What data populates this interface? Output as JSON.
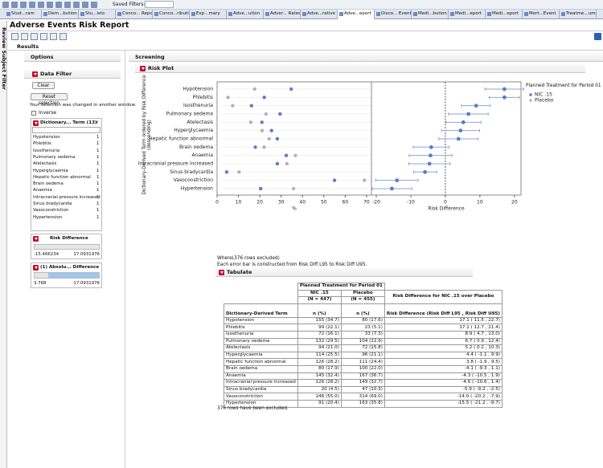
{
  "tabs": [
    "Stud...ram",
    "Dem...bution",
    "Stu...isto",
    "Conco... Report",
    "Conco...ribution",
    "Exp...mary",
    "Adve...ution",
    "Adver... Rates",
    "Adve...rative",
    "Adve...eport",
    "Disco... Event",
    "Medi...bution",
    "Medi...eport",
    "Medi...eport",
    "Mort...Event",
    "Treatme...ummary"
  ],
  "saved_filters": "Saved Filters:",
  "window_title": "Adverse Events Risk Report",
  "side_tab": "Review Subject Filter",
  "results": "Results",
  "options": "Options",
  "data_filter": {
    "title": "Data Filter",
    "clear": "Clear",
    "reset": "Reset selection",
    "message": "Your selection was changed in another window.",
    "inverse": "Inverse",
    "term_box": {
      "title": "Dictionary... Term (13)",
      "items": [
        {
          "label": "Hypotension",
          "count": 1
        },
        {
          "label": "Phlebitis",
          "count": 1
        },
        {
          "label": "Isosthenuria",
          "count": 1
        },
        {
          "label": "Pulmonary oedema",
          "count": 1
        },
        {
          "label": "Atelectasis",
          "count": 1
        },
        {
          "label": "Hyperglycaemia",
          "count": 1
        },
        {
          "label": "Hepatic function abnormal",
          "count": 1
        },
        {
          "label": "Brain oedema",
          "count": 1
        },
        {
          "label": "Anaemia",
          "count": 1
        },
        {
          "label": "Intracranial pressure increased",
          "count": 1
        },
        {
          "label": "Sinus bradycardia",
          "count": 1
        },
        {
          "label": "Vasoconstriction",
          "count": 1
        },
        {
          "label": "Hypertension",
          "count": 1
        }
      ]
    },
    "risk_box": {
      "title": "Risk Difference",
      "min": -15.466234,
      "max": 17.0931976
    },
    "abs_box": {
      "title": "(1) Absolu... Difference",
      "min": 3.768,
      "max": 17.0931976
    }
  },
  "screening": "Screening",
  "risk_plot_title": "Risk Plot",
  "chart_data": [
    {
      "type": "dot",
      "y_label": "Dictionary-Derived Term ordered by Risk Difference (descending)",
      "x_label": "%",
      "categories": [
        "Hypotension",
        "Phlebitis",
        "Isosthenuria",
        "Pulmonary oedema",
        "Atelectasis",
        "Hyperglycaemia",
        "Hepatic function abnormal",
        "Brain oedema",
        "Anaemia",
        "Intracranial pressure increased",
        "Sinus bradycardia",
        "Vasoconstriction",
        "Hypertension"
      ],
      "series": [
        {
          "name": "NIC .15",
          "color": "#5a7ec4",
          "values": [
            34.7,
            22.1,
            16.1,
            29.5,
            21.0,
            25.5,
            28.2,
            17.9,
            32.4,
            28.2,
            4.5,
            55.0,
            20.4
          ]
        },
        {
          "name": "Placebo",
          "color": "#b3b3b3",
          "values": [
            17.6,
            5.1,
            7.3,
            22.9,
            15.8,
            21.1,
            24.4,
            22.0,
            36.7,
            32.7,
            10.3,
            69.0,
            35.8
          ]
        }
      ],
      "xlim": [
        0,
        72.3
      ],
      "xticks": [
        0,
        10,
        20,
        30,
        40,
        50,
        60,
        70
      ],
      "legend": {
        "title": "Planned Treatment for Period 01",
        "position": "right"
      }
    },
    {
      "type": "errorbar",
      "x_label": "Risk Difference",
      "color": "#5a7ec4",
      "values": [
        17.1,
        17.1,
        8.9,
        6.7,
        5.2,
        4.4,
        3.8,
        -4.1,
        -4.3,
        -4.6,
        -5.9,
        -14.0,
        -15.5
      ],
      "lower": [
        11.5,
        12.7,
        4.7,
        0.9,
        0.2,
        -1.1,
        -1.9,
        -9.3,
        -10.5,
        -10.6,
        -9.2,
        -20.2,
        -21.2
      ],
      "upper": [
        22.7,
        21.4,
        13.0,
        12.4,
        10.3,
        9.9,
        9.5,
        1.1,
        1.9,
        1.4,
        -2.5,
        -7.9,
        -9.7
      ],
      "xlim": [
        -21.4,
        21.9
      ],
      "xticks": [
        -20,
        -10,
        0,
        10,
        20
      ],
      "reference_line": 0
    }
  ],
  "where": "Where(376 rows excluded)",
  "note": "Each error bar is constructed from Risk Diff L95 to Risk Diff U95.",
  "tabulate": "Tabulate",
  "table": {
    "group_header": "Planned Treatment for Period 01",
    "groups": [
      "NIC .15",
      "Placebo"
    ],
    "group_n": [
      "(N = 447)",
      "(N = 455)"
    ],
    "rd_header": "Risk Difference for NIC .15 over Placebo",
    "columns": [
      "Dictionary-Derived Term",
      "n (%)",
      "n (%)",
      "Risk Difference (Risk Diff L95 , Risk Diff U95)"
    ],
    "rows": [
      [
        "Hypotension",
        "155 (34.7)",
        "80 (17.6)",
        "17.1 ( 11.5 , 22.7)"
      ],
      [
        "Phlebitis",
        "99 (22.1)",
        "23 (5.1)",
        "17.1 ( 12.7 , 21.4)"
      ],
      [
        "Isosthenuria",
        "72 (16.1)",
        "33 (7.3)",
        "8.9 ( 4.7 , 13.0)"
      ],
      [
        "Pulmonary oedema",
        "132 (29.5)",
        "104 (22.9)",
        "6.7 ( 0.9 , 12.4)"
      ],
      [
        "Atelectasis",
        "94 (21.0)",
        "72 (15.8)",
        "5.2 ( 0.2 , 10.3)"
      ],
      [
        "Hyperglycaemia",
        "114 (25.5)",
        "96 (21.1)",
        "4.4 ( -1.1 , 9.9)"
      ],
      [
        "Hepatic function abnormal",
        "126 (28.2)",
        "111 (24.4)",
        "3.8 ( -1.9 , 9.5)"
      ],
      [
        "Brain oedema",
        "80 (17.9)",
        "100 (22.0)",
        "-4.1 ( -9.3 , 1.1)"
      ],
      [
        "Anaemia",
        "145 (32.4)",
        "167 (36.7)",
        "-4.3 ( -10.5 , 1.9)"
      ],
      [
        "Intracranial pressure increased",
        "126 (28.2)",
        "149 (32.7)",
        "-4.6 ( -10.6 , 1.4)"
      ],
      [
        "Sinus bradycardia",
        "20 (4.5)",
        "47 (10.3)",
        "-5.9 ( -9.2 , -2.5)"
      ],
      [
        "Vasoconstriction",
        "246 (55.0)",
        "314 (69.0)",
        "-14.0 ( -20.2 , -7.9)"
      ],
      [
        "Hypertension",
        "91 (20.4)",
        "163 (35.8)",
        "-15.5 ( -21.2 , -9.7)"
      ]
    ]
  },
  "footer": "376 rows have been excluded."
}
